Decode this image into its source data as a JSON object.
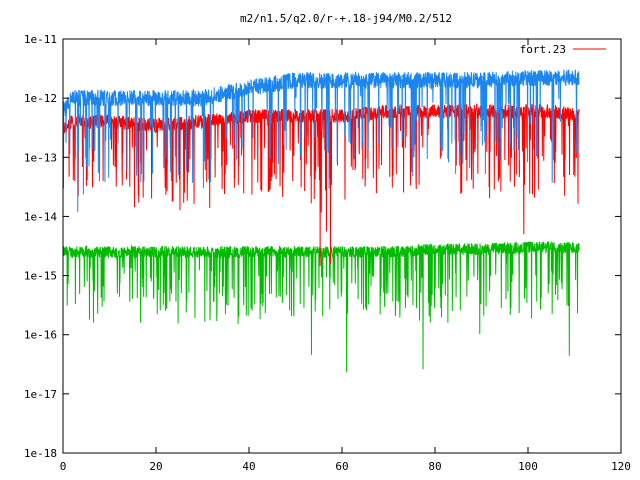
{
  "chart_data": {
    "type": "line",
    "title": "m2/n1.5/q2.0/r-+.18-j94/M0.2/512",
    "xlabel": "",
    "ylabel": "",
    "xlim": [
      0,
      120
    ],
    "ylim": [
      1e-18,
      1e-11
    ],
    "y_scale": "log",
    "x_ticks": [
      0,
      20,
      40,
      60,
      80,
      100,
      120
    ],
    "x_tick_labels": [
      "0",
      "20",
      "40",
      "60",
      "80",
      "100",
      "120"
    ],
    "y_ticks": [
      1e-18,
      1e-17,
      1e-16,
      1e-15,
      1e-14,
      1e-13,
      1e-12,
      1e-11
    ],
    "y_tick_labels": [
      "1e-18",
      "1e-17",
      "1e-16",
      "1e-15",
      "1e-14",
      "1e-13",
      "1e-12",
      "1e-11"
    ],
    "grid": false,
    "legend_position": "top-right",
    "series": [
      {
        "name": "fort.23",
        "color": "#ff0000",
        "description_points": {
          "x": [
            0,
            2,
            5,
            10,
            20,
            30,
            40,
            50,
            60,
            70,
            80,
            90,
            100,
            105,
            111
          ],
          "y": [
            3e-13,
            4e-13,
            4e-13,
            4e-13,
            3.5e-13,
            4e-13,
            5e-13,
            5e-13,
            5e-13,
            6e-13,
            6e-13,
            6e-13,
            6e-13,
            6e-13,
            5e-13
          ]
        }
      },
      {
        "name": "",
        "color": "#1c86ee",
        "description_points": {
          "x": [
            0,
            2,
            5,
            10,
            20,
            30,
            40,
            50,
            60,
            70,
            80,
            90,
            100,
            105,
            111
          ],
          "y": [
            6e-13,
            1e-12,
            1e-12,
            1e-12,
            1e-12,
            1e-12,
            1.5e-12,
            2e-12,
            2e-12,
            2e-12,
            2e-12,
            2e-12,
            2.2e-12,
            2.2e-12,
            2.2e-12
          ]
        }
      },
      {
        "name": "",
        "color": "#00bb00",
        "description_points": {
          "x": [
            0,
            2,
            5,
            10,
            20,
            30,
            40,
            50,
            60,
            70,
            80,
            90,
            100,
            105,
            111
          ],
          "y": [
            2.5e-15,
            2.5e-15,
            2.5e-15,
            2.5e-15,
            2.5e-15,
            2.5e-15,
            2.5e-15,
            2.5e-15,
            2.5e-15,
            2.5e-15,
            2.8e-15,
            2.8e-15,
            3e-15,
            3e-15,
            3e-15
          ]
        }
      }
    ]
  }
}
